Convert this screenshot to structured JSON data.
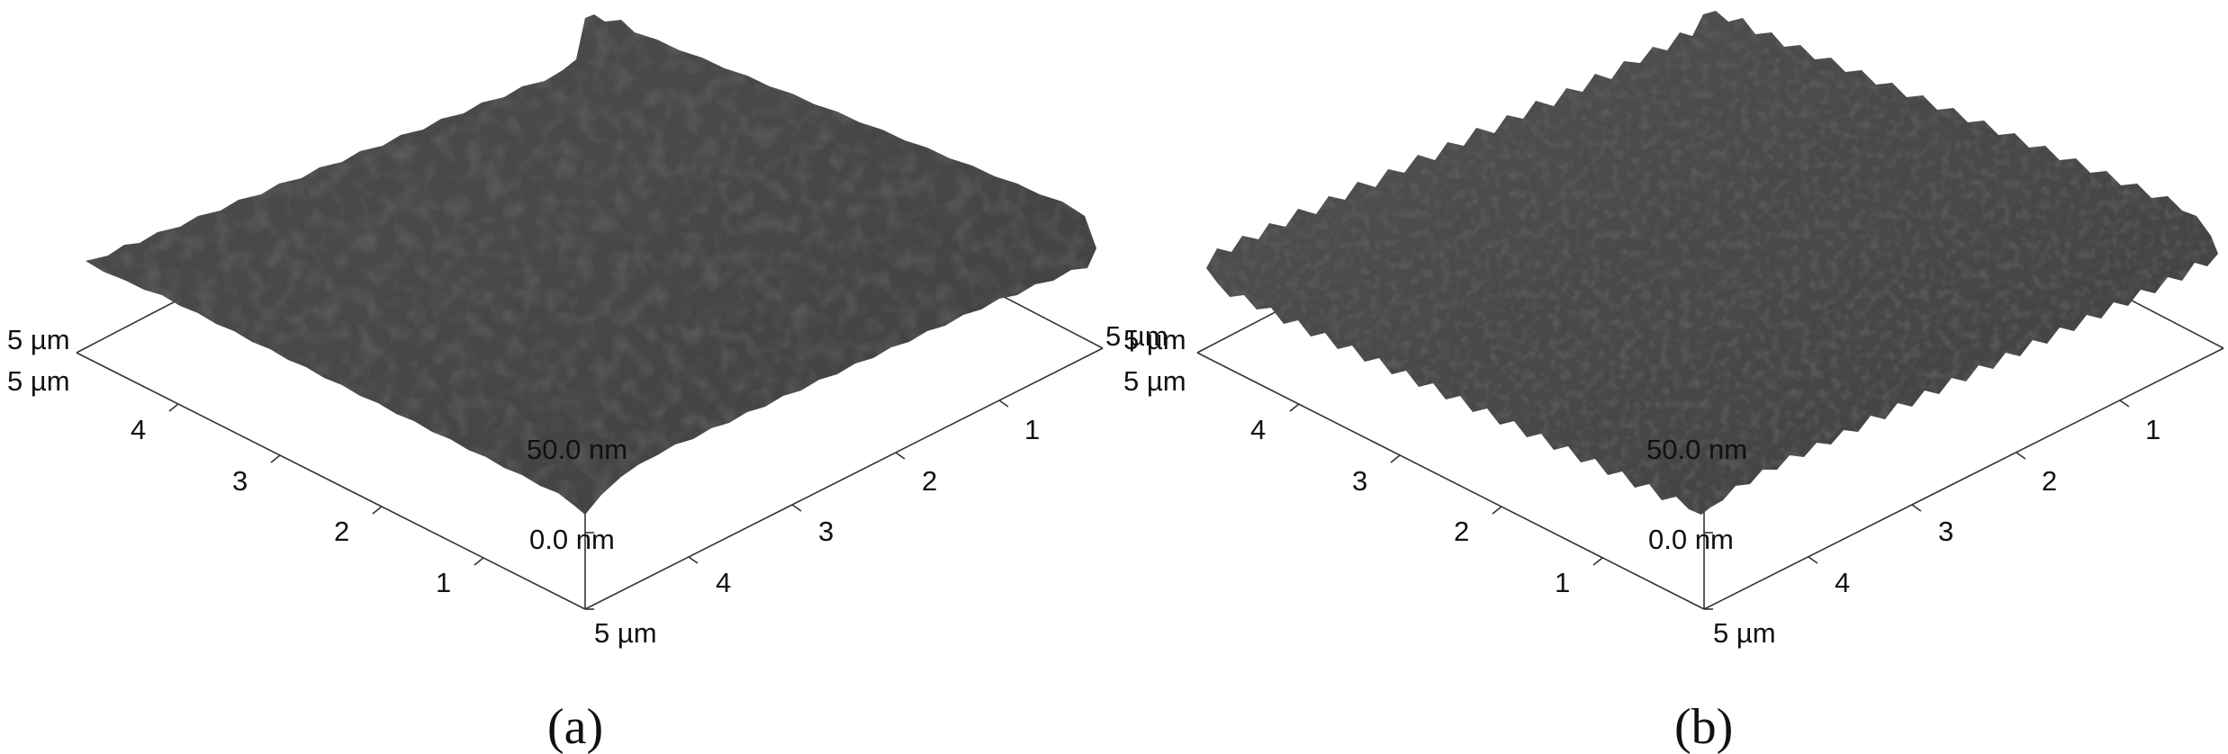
{
  "panels": [
    {
      "id": "a",
      "label": "(a)",
      "surface_color": "#4a4a4a",
      "roughness": "smooth",
      "left_axis": {
        "end_label": "5 µm",
        "ticks": [
          "4",
          "3",
          "2",
          "1"
        ]
      },
      "right_axis": {
        "end_label": "5 µm",
        "ticks": [
          "1",
          "2",
          "3",
          "4"
        ]
      },
      "origin_label": "5 µm",
      "back_label": "5 µm",
      "z_axis": {
        "min_label": "0.0 nm",
        "max_label": "50.0 nm"
      }
    },
    {
      "id": "b",
      "label": "(b)",
      "surface_color": "#4a4a4a",
      "roughness": "rough",
      "left_axis": {
        "end_label": "5 µm",
        "ticks": [
          "4",
          "3",
          "2",
          "1"
        ]
      },
      "right_axis": {
        "end_label": "5 µm",
        "ticks": [
          "1",
          "2",
          "3",
          "4"
        ]
      },
      "origin_label": "5 µm",
      "back_label": "5 µm",
      "z_axis": {
        "min_label": "0.0 nm",
        "max_label": "50.0 nm"
      }
    }
  ]
}
